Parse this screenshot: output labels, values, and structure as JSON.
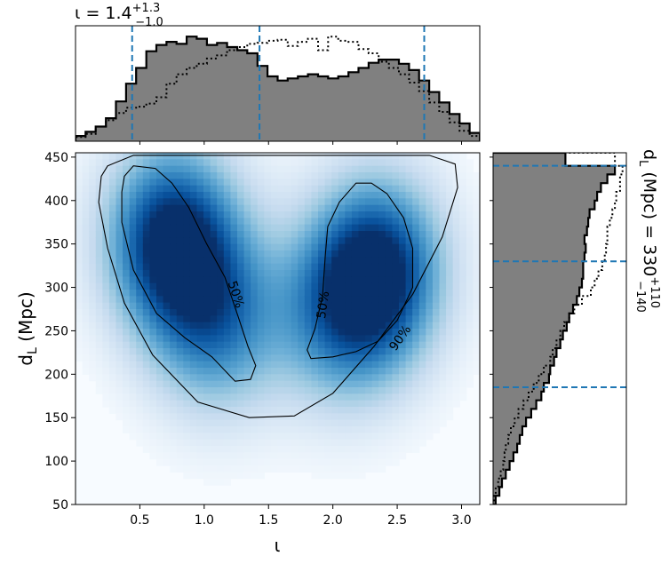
{
  "top_title": {
    "main": "ι = 1.4",
    "sup": "+1.3",
    "sub": "−1.0"
  },
  "right_title": {
    "main": "d",
    "sub_L": "L",
    "rest": " (Mpc) = 330",
    "sup": "+110",
    "sub": "−140"
  },
  "main_axes": {
    "xlabel": "ι",
    "ylabel_main": "d",
    "ylabel_sub": "L",
    "ylabel_rest": " (Mpc)",
    "xticks": [
      "0.5",
      "1.0",
      "1.5",
      "2.0",
      "2.5",
      "3.0"
    ],
    "yticks": [
      "50",
      "100",
      "150",
      "200",
      "250",
      "300",
      "350",
      "400",
      "450"
    ],
    "contour_labels": [
      "50%",
      "50%",
      "90%"
    ]
  },
  "chart_data": [
    {
      "type": "heatmap",
      "title": "",
      "xlabel": "ι",
      "ylabel": "d_L (Mpc)",
      "xlim": [
        0.0,
        3.14159
      ],
      "ylim": [
        50,
        455
      ],
      "colormap": "Blues",
      "density_modes": [
        {
          "iota": 0.75,
          "dL": 355,
          "peak": 1.0
        },
        {
          "iota": 2.35,
          "dL": 320,
          "peak": 0.93
        },
        {
          "iota": 1.1,
          "dL": 260,
          "peak": 0.6
        },
        {
          "iota": 2.05,
          "dL": 265,
          "peak": 0.5
        }
      ],
      "contours": [
        {
          "level": "50%",
          "points": [
            [
              0.38,
              428
            ],
            [
              0.45,
              440
            ],
            [
              0.62,
              437
            ],
            [
              0.75,
              420
            ],
            [
              0.88,
              392
            ],
            [
              1.02,
              350
            ],
            [
              1.16,
              312
            ],
            [
              1.26,
              268
            ],
            [
              1.34,
              232
            ],
            [
              1.4,
              210
            ],
            [
              1.36,
              194
            ],
            [
              1.24,
              192
            ],
            [
              1.06,
              220
            ],
            [
              0.85,
              242
            ],
            [
              0.63,
              270
            ],
            [
              0.45,
              320
            ],
            [
              0.36,
              375
            ],
            [
              0.36,
              410
            ],
            [
              0.38,
              428
            ]
          ]
        },
        {
          "level": "50%",
          "points": [
            [
              2.3,
              420
            ],
            [
              2.42,
              408
            ],
            [
              2.55,
              380
            ],
            [
              2.62,
              345
            ],
            [
              2.62,
              300
            ],
            [
              2.5,
              262
            ],
            [
              2.35,
              238
            ],
            [
              2.18,
              226
            ],
            [
              2.0,
              220
            ],
            [
              1.83,
              218
            ],
            [
              1.8,
              228
            ],
            [
              1.86,
              252
            ],
            [
              1.92,
              290
            ],
            [
              1.94,
              335
            ],
            [
              1.96,
              370
            ],
            [
              2.05,
              398
            ],
            [
              2.18,
              420
            ],
            [
              2.3,
              420
            ]
          ]
        },
        {
          "level": "90%",
          "points": [
            [
              0.25,
              440
            ],
            [
              0.45,
              452
            ],
            [
              1.0,
              452
            ],
            [
              1.6,
              452
            ],
            [
              2.2,
              452
            ],
            [
              2.75,
              452
            ],
            [
              2.95,
              442
            ],
            [
              2.97,
              415
            ],
            [
              2.85,
              358
            ],
            [
              2.62,
              292
            ],
            [
              2.32,
              232
            ],
            [
              2.0,
              178
            ],
            [
              1.7,
              152
            ],
            [
              1.35,
              150
            ],
            [
              0.95,
              168
            ],
            [
              0.6,
              222
            ],
            [
              0.38,
              282
            ],
            [
              0.25,
              345
            ],
            [
              0.18,
              398
            ],
            [
              0.2,
              428
            ],
            [
              0.25,
              440
            ]
          ]
        }
      ]
    },
    {
      "type": "bar",
      "title": "ι = 1.4 +1.3 −1.0",
      "xlabel": "ι",
      "xlim": [
        0.0,
        3.14159
      ],
      "bin_edges": [
        0.0,
        0.078,
        0.157,
        0.236,
        0.314,
        0.393,
        0.471,
        0.55,
        0.628,
        0.707,
        0.785,
        0.864,
        0.942,
        1.021,
        1.1,
        1.178,
        1.257,
        1.335,
        1.414,
        1.492,
        1.571,
        1.649,
        1.728,
        1.806,
        1.885,
        1.963,
        2.042,
        2.121,
        2.199,
        2.278,
        2.356,
        2.435,
        2.513,
        2.592,
        2.67,
        2.749,
        2.827,
        2.906,
        2.985,
        3.063,
        3.142
      ],
      "series": [
        {
          "values": [
            0.05,
            0.09,
            0.14,
            0.22,
            0.38,
            0.55,
            0.7,
            0.86,
            0.92,
            0.95,
            0.93,
            1.0,
            0.98,
            0.92,
            0.94,
            0.9,
            0.87,
            0.84,
            0.72,
            0.62,
            0.58,
            0.6,
            0.62,
            0.64,
            0.62,
            0.6,
            0.62,
            0.66,
            0.7,
            0.75,
            0.78,
            0.78,
            0.74,
            0.68,
            0.58,
            0.47,
            0.37,
            0.26,
            0.17,
            0.08
          ],
          "style": "filled-gray-steps"
        },
        {
          "values": [
            0.04,
            0.07,
            0.14,
            0.2,
            0.27,
            0.32,
            0.33,
            0.36,
            0.42,
            0.55,
            0.64,
            0.7,
            0.74,
            0.79,
            0.82,
            0.87,
            0.9,
            0.93,
            0.94,
            0.96,
            0.97,
            0.91,
            0.95,
            0.98,
            0.87,
            1.0,
            0.96,
            0.95,
            0.88,
            0.84,
            0.76,
            0.7,
            0.64,
            0.56,
            0.48,
            0.37,
            0.28,
            0.18,
            0.1,
            0.05
          ],
          "style": "dotted-steps"
        }
      ],
      "quantile_lines": [
        0.44,
        1.43,
        2.71
      ]
    },
    {
      "type": "bar",
      "title": "d_L (Mpc) = 330 +110 −140",
      "ylabel": "d_L (Mpc)",
      "orientation": "horizontal",
      "ylim": [
        50,
        455
      ],
      "bin_edges": [
        50,
        60,
        70,
        80,
        90,
        100,
        110,
        120,
        130,
        140,
        150,
        160,
        170,
        180,
        190,
        200,
        210,
        220,
        230,
        240,
        250,
        260,
        270,
        280,
        290,
        300,
        310,
        320,
        330,
        340,
        350,
        360,
        370,
        380,
        390,
        400,
        410,
        420,
        430,
        440,
        455
      ],
      "series": [
        {
          "values": [
            0.02,
            0.05,
            0.07,
            0.1,
            0.13,
            0.16,
            0.19,
            0.21,
            0.23,
            0.26,
            0.3,
            0.34,
            0.38,
            0.4,
            0.44,
            0.45,
            0.48,
            0.5,
            0.53,
            0.55,
            0.58,
            0.6,
            0.63,
            0.66,
            0.68,
            0.7,
            0.71,
            0.71,
            0.72,
            0.73,
            0.72,
            0.74,
            0.75,
            0.76,
            0.8,
            0.82,
            0.85,
            0.9,
            0.96,
            0.57
          ],
          "style": "filled-gray-steps"
        },
        {
          "values": [
            0.01,
            0.02,
            0.04,
            0.06,
            0.08,
            0.09,
            0.1,
            0.12,
            0.14,
            0.17,
            0.2,
            0.24,
            0.28,
            0.32,
            0.36,
            0.4,
            0.45,
            0.47,
            0.5,
            0.53,
            0.56,
            0.6,
            0.64,
            0.7,
            0.77,
            0.8,
            0.83,
            0.86,
            0.88,
            0.89,
            0.9,
            0.9,
            0.92,
            0.94,
            0.96,
            0.97,
            1.0,
            1.0,
            1.02,
            0.96
          ],
          "style": "dotted-steps"
        }
      ],
      "quantile_lines": [
        185,
        330,
        440
      ]
    }
  ]
}
